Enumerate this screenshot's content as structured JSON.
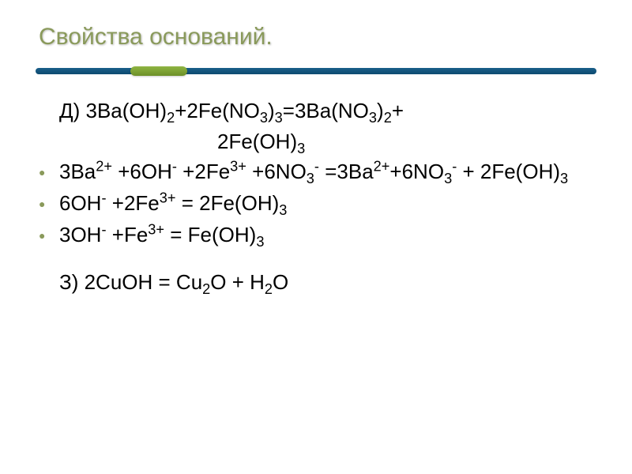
{
  "title": "Свойства оснований.",
  "colors": {
    "title_color": "#8a9a5b",
    "bullet_color": "#8a9a5b",
    "bar_main": "#0d4a70",
    "bar_accent": "#7da332",
    "text_color": "#000000",
    "background": "#ffffff"
  },
  "lines": [
    {
      "bullet": false,
      "leader": "Д) ",
      "html": "3Ba(OH)<sub>2</sub>+2Fe(NO<sub>3</sub>)<sub>3</sub>=3Ba(NO<sub>3</sub>)<sub>2</sub>+"
    },
    {
      "bullet": false,
      "indent": true,
      "html": "2Fe(OH)<sub>3</sub>"
    },
    {
      "bullet": true,
      "html": "3Ba<sup>2+</sup> +6OH<sup>-</sup> +2Fe<sup>3+</sup> +6NO<sub>3</sub><sup>-</sup> =3Ba<sup>2+</sup>+6NO<sub>3</sub><sup>-</sup> + 2Fe(OH)<sub>3</sub>"
    },
    {
      "bullet": true,
      "html": "6OH<sup>-</sup> +2Fe<sup>3+</sup> = 2Fe(OH)<sub>3</sub>"
    },
    {
      "bullet": true,
      "html": "3OH<sup>-</sup> +Fe<sup>3+</sup> = Fe(OH)<sub>3</sub>"
    },
    {
      "spacer": true
    },
    {
      "bullet": false,
      "leader": "З) ",
      "html": "2CuOH = Cu<sub>2</sub>O + H<sub>2</sub>O"
    }
  ]
}
